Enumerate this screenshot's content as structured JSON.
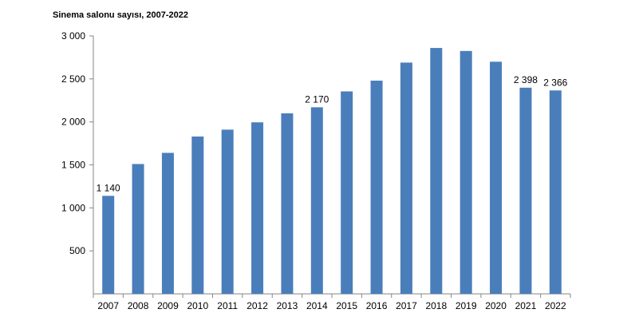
{
  "chart_data": {
    "type": "bar",
    "title": "Sinema salonu sayısı, 2007-2022",
    "categories": [
      "2007",
      "2008",
      "2009",
      "2010",
      "2011",
      "2012",
      "2013",
      "2014",
      "2015",
      "2016",
      "2017",
      "2018",
      "2019",
      "2020",
      "2021",
      "2022"
    ],
    "values": [
      1140,
      1510,
      1640,
      1830,
      1910,
      1995,
      2100,
      2170,
      2355,
      2480,
      2690,
      2860,
      2825,
      2700,
      2398,
      2366
    ],
    "data_labels": {
      "0": "1 140",
      "7": "2 170",
      "14": "2 398",
      "15": "2 366"
    },
    "y_ticks": [
      {
        "value": 500,
        "label": "500"
      },
      {
        "value": 1000,
        "label": "1 000"
      },
      {
        "value": 1500,
        "label": "1 500"
      },
      {
        "value": 2000,
        "label": "2 000"
      },
      {
        "value": 2500,
        "label": "2 500"
      },
      {
        "value": 3000,
        "label": "3 000"
      }
    ],
    "ylim": [
      0,
      3000
    ],
    "xlabel": "",
    "ylabel": "",
    "grid": false,
    "legend": "none",
    "bar_color": "#4a7ebb",
    "axis_color": "#868686"
  }
}
